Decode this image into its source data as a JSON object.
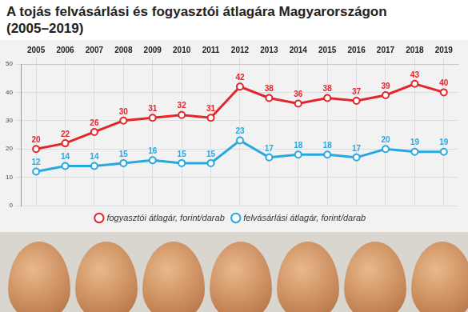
{
  "chart_data": {
    "type": "line",
    "title": "A tojás felvásárlási és fogyasztói átlagára Magyarországon",
    "subtitle": "(2005–2019)",
    "categories": [
      "2005",
      "2006",
      "2007",
      "2008",
      "2009",
      "2010",
      "2011",
      "2012",
      "2013",
      "2014",
      "2015",
      "2016",
      "2017",
      "2018",
      "2019"
    ],
    "series": [
      {
        "name": "fogyasztói átlagár, forint/darab",
        "color": "#e3262b",
        "marker": "circle",
        "values": [
          20,
          22,
          26,
          30,
          31,
          32,
          31,
          42,
          38,
          36,
          38,
          37,
          39,
          43,
          40
        ]
      },
      {
        "name": "felvásárlási átlagár, forint/darab",
        "color": "#29a8e0",
        "marker": "circle",
        "values": [
          12,
          14,
          14,
          15,
          16,
          15,
          15,
          23,
          17,
          18,
          18,
          17,
          20,
          19,
          19
        ]
      }
    ],
    "ylim": [
      0,
      50
    ],
    "yticks": [
      0,
      10,
      20,
      30,
      40,
      50
    ],
    "grid": true,
    "legend": "bottom",
    "data_labels": true
  }
}
